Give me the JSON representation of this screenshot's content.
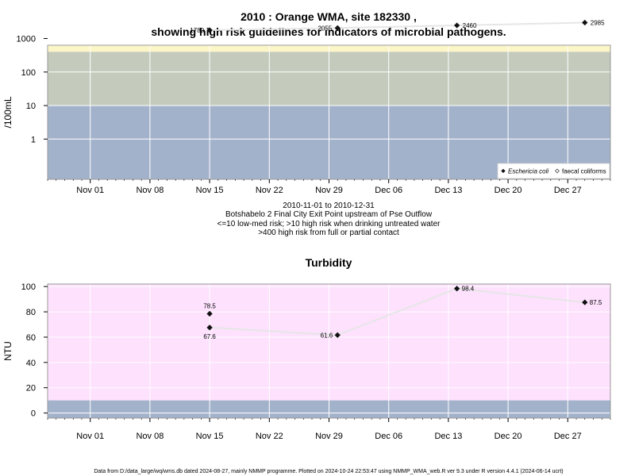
{
  "page": {
    "title_line1": "2010 : Orange WMA, site 182330 ,",
    "title_line2": "showing high risk guidelines for indicators of microbial pathogens.",
    "sub_line1": "2010-11-01 to 2010-12-31",
    "sub_line2": "Botshabelo 2 Final City Exit Point upstream of Pse Outflow",
    "sub_line3": "<=10 low-med risk; >10 high risk when drinking untreated water",
    "sub_line4": ">400 high risk from full or partial contact",
    "footer": "Data from D:/data_large/wq/wms.db dated 2024-08-27, mainly NMMP programme. Plotted on 2024-10-24 22:53:47 using NMMP_WMA_web.R ver 9.3 under R version 4.4.1 (2024-06-14 ucrt)"
  },
  "chart_data": [
    {
      "type": "scatter",
      "title": "",
      "ylabel": "/100mL",
      "xlabel": "",
      "x_axis_type": "date",
      "xlim": [
        "2010-10-27",
        "2011-01-01"
      ],
      "y_scale": "log10",
      "ylim_log10": [
        -1.2,
        2.8
      ],
      "x_ticks": [
        {
          "date": "2010-11-01",
          "label": "Nov 01"
        },
        {
          "date": "2010-11-08",
          "label": "Nov 08"
        },
        {
          "date": "2010-11-15",
          "label": "Nov 15"
        },
        {
          "date": "2010-11-22",
          "label": "Nov 22"
        },
        {
          "date": "2010-11-29",
          "label": "Nov 29"
        },
        {
          "date": "2010-12-06",
          "label": "Dec 06"
        },
        {
          "date": "2010-12-13",
          "label": "Dec 13"
        },
        {
          "date": "2010-12-20",
          "label": "Dec 20"
        },
        {
          "date": "2010-12-27",
          "label": "Dec 27"
        }
      ],
      "y_ticks": [
        1,
        10,
        100,
        1000
      ],
      "y_tick_labels": [
        "1",
        "10",
        "100",
        "1000"
      ],
      "bands": [
        {
          "from": 400,
          "to": "top",
          "color": "#fcf5c7"
        },
        {
          "from": 10,
          "to": 400,
          "color": "#c4cbbd"
        },
        {
          "from": "bottom",
          "to": 10,
          "color": "#a3b2cb"
        }
      ],
      "series": [
        {
          "name": "Eschericia coli",
          "marker": "filled-diamond",
          "points": [
            {
              "x": "2010-11-15",
              "y": 1780,
              "label": "1780"
            },
            {
              "x": "2010-11-30",
              "y": 2055,
              "label": "2055"
            },
            {
              "x": "2010-12-14",
              "y": 2460,
              "label": "2460"
            },
            {
              "x": "2010-12-29",
              "y": 2985,
              "label": "2985"
            }
          ]
        },
        {
          "name": "faecal coliforms",
          "marker": "open-diamond",
          "points": []
        }
      ],
      "legend_position": "bottom-right",
      "grid": true
    },
    {
      "type": "scatter",
      "title": "Turbidity",
      "ylabel": "NTU",
      "xlabel": "",
      "x_axis_type": "date",
      "xlim": [
        "2010-10-27",
        "2011-01-01"
      ],
      "ylim": [
        -4,
        102
      ],
      "x_ticks": [
        {
          "date": "2010-11-01",
          "label": "Nov 01"
        },
        {
          "date": "2010-11-08",
          "label": "Nov 08"
        },
        {
          "date": "2010-11-15",
          "label": "Nov 15"
        },
        {
          "date": "2010-11-22",
          "label": "Nov 22"
        },
        {
          "date": "2010-11-29",
          "label": "Nov 29"
        },
        {
          "date": "2010-12-06",
          "label": "Dec 06"
        },
        {
          "date": "2010-12-13",
          "label": "Dec 13"
        },
        {
          "date": "2010-12-20",
          "label": "Dec 20"
        },
        {
          "date": "2010-12-27",
          "label": "Dec 27"
        }
      ],
      "y_ticks": [
        0,
        20,
        40,
        60,
        80,
        100
      ],
      "y_tick_labels": [
        "0",
        "20",
        "40",
        "60",
        "80",
        "100"
      ],
      "bands": [
        {
          "from": 10,
          "to": "top",
          "color": "#fde1fd"
        },
        {
          "from": "bottom",
          "to": 10,
          "color": "#a3b2cb"
        }
      ],
      "series": [
        {
          "name": "",
          "marker": "filled-diamond",
          "points": [
            {
              "x": "2010-11-15",
              "y": 78.5,
              "label": "78.5",
              "label_pos": "above"
            },
            {
              "x": "2010-11-15",
              "y": 67.6,
              "label": "67.6",
              "label_pos": "below"
            },
            {
              "x": "2010-11-30",
              "y": 61.6,
              "label": "61.6",
              "label_pos": "left"
            },
            {
              "x": "2010-12-14",
              "y": 98.4,
              "label": "98.4",
              "label_pos": "right"
            },
            {
              "x": "2010-12-29",
              "y": 87.5,
              "label": "87.5",
              "label_pos": "right"
            }
          ]
        }
      ],
      "grid": true
    }
  ]
}
